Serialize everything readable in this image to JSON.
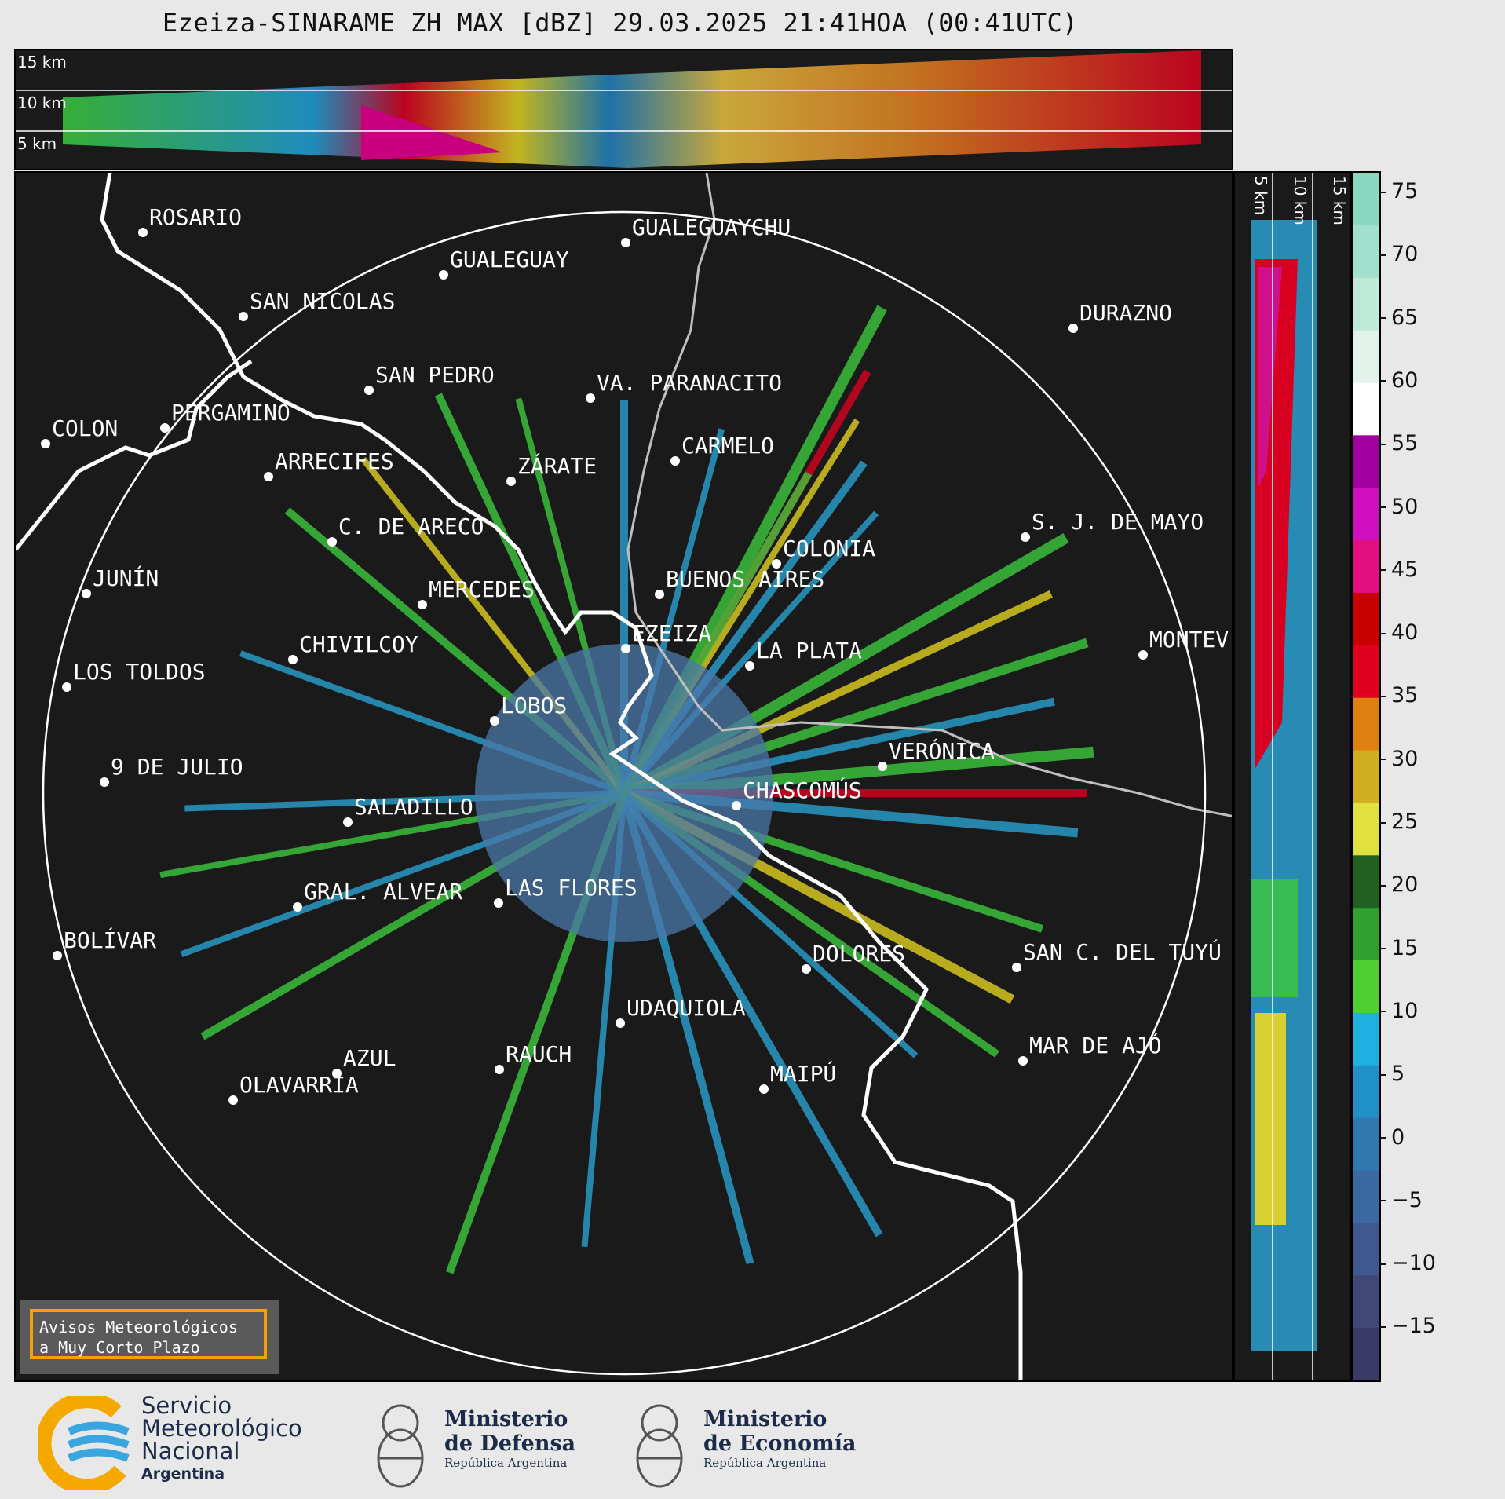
{
  "title": "Ezeiza-SINARAME ZH MAX [dBZ] 29.03.2025 21:41HOA (00:41UTC)",
  "top_altitudes": [
    "15 km",
    "10 km",
    "5 km"
  ],
  "side_altitudes": [
    "5 km",
    "10 km",
    "15 km"
  ],
  "cities": [
    {
      "name": "ROSARIO"
    },
    {
      "name": "GUALEGUAYCHU"
    },
    {
      "name": "GUALEGUAY"
    },
    {
      "name": "SAN NICOLAS"
    },
    {
      "name": "DURAZNO"
    },
    {
      "name": "SAN PEDRO"
    },
    {
      "name": "VA. PARANACITO"
    },
    {
      "name": "COLON"
    },
    {
      "name": "PERGAMINO"
    },
    {
      "name": "CARMELO"
    },
    {
      "name": "ARRECIFES"
    },
    {
      "name": "ZÁRATE"
    },
    {
      "name": "S. J. DE MAYO"
    },
    {
      "name": "C. DE ARECO"
    },
    {
      "name": "COLONIA"
    },
    {
      "name": "JUNÍN"
    },
    {
      "name": "BUENOS AIRES"
    },
    {
      "name": "MERCEDES"
    },
    {
      "name": "EZEIZA"
    },
    {
      "name": "MONTEV"
    },
    {
      "name": "CHIVILCOY"
    },
    {
      "name": "LA PLATA"
    },
    {
      "name": "LOS TOLDOS"
    },
    {
      "name": "LOBOS"
    },
    {
      "name": "VERÓNICA"
    },
    {
      "name": "9 DE JULIO"
    },
    {
      "name": "CHASCOMÚS"
    },
    {
      "name": "SALADILLO"
    },
    {
      "name": "GRAL. ALVEAR"
    },
    {
      "name": "LAS FLORES"
    },
    {
      "name": "BOLÍVAR"
    },
    {
      "name": "DOLORES"
    },
    {
      "name": "SAN C. DEL TUYÚ"
    },
    {
      "name": "UDAQUIOLA"
    },
    {
      "name": "MAR DE AJÓ"
    },
    {
      "name": "RAUCH"
    },
    {
      "name": "AZUL"
    },
    {
      "name": "OLAVARRÍA"
    },
    {
      "name": "MAIPÚ"
    }
  ],
  "colorbar": {
    "ticks": [
      "75",
      "70",
      "65",
      "60",
      "55",
      "50",
      "45",
      "40",
      "35",
      "30",
      "25",
      "20",
      "15",
      "10",
      "5",
      "0",
      "−5",
      "−10",
      "−15"
    ]
  },
  "warning_box": {
    "line1": "Avisos Meteorológicos",
    "line2": "a Muy Corto Plazo"
  },
  "footer": {
    "smn": {
      "line1": "Servicio",
      "line2": "Meteorológico",
      "line3": "Nacional",
      "line4": "Argentina"
    },
    "defensa": {
      "line1": "Ministerio",
      "line2": "de Defensa",
      "line3": "República Argentina"
    },
    "economia": {
      "line1": "Ministerio",
      "line2": "de Economía",
      "line3": "República Argentina"
    }
  }
}
